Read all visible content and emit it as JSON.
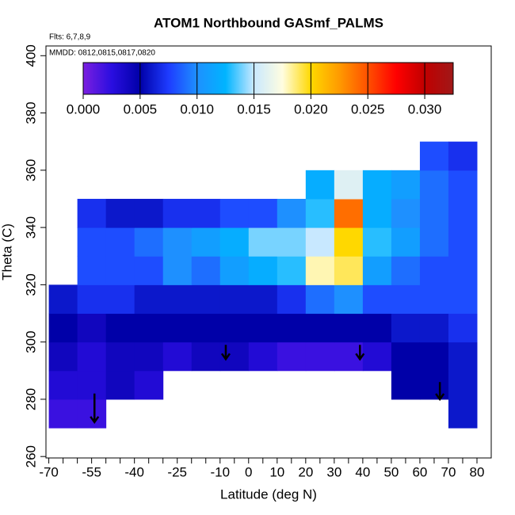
{
  "chart_data": {
    "type": "heatmap",
    "title": "ATOM1 Northbound GASmf_PALMS",
    "annotations": [
      "Flts: 6,7,8,9",
      "MMDD: 0812,0815,0817,0820"
    ],
    "x_label": "Latitude (deg N)",
    "y_label": "Theta (C)",
    "xlim": [
      -71,
      85
    ],
    "ylim": [
      259.5,
      403.4
    ],
    "xticks": [
      -70,
      -55,
      -40,
      -25,
      -10,
      0,
      10,
      20,
      30,
      40,
      50,
      60,
      70,
      80
    ],
    "xminor_ticks": [
      -65,
      -60,
      -50,
      -45,
      -35,
      -30,
      -20,
      -15,
      -5,
      5,
      15,
      25,
      35,
      45,
      55,
      65,
      75
    ],
    "yticks": [
      260,
      280,
      300,
      320,
      340,
      360,
      380,
      400
    ],
    "x_bins": [
      -70,
      -60,
      -50,
      -40,
      -30,
      -20,
      -10,
      0,
      10,
      20,
      30,
      40,
      50,
      60,
      70,
      80
    ],
    "y_bins": [
      270,
      280,
      290,
      300,
      310,
      320,
      330,
      340,
      350,
      360,
      370
    ],
    "values": [
      [
        0.002,
        0.002,
        null,
        null,
        null,
        null,
        null,
        null,
        null,
        null,
        null,
        null,
        null,
        null,
        0.006
      ],
      [
        0.003,
        0.003,
        0.004,
        0.003,
        null,
        null,
        null,
        null,
        null,
        null,
        null,
        null,
        0.005,
        0.005,
        0.006
      ],
      [
        0.004,
        0.003,
        0.004,
        0.004,
        0.003,
        0.004,
        0.004,
        0.003,
        0.002,
        0.002,
        0.002,
        0.003,
        0.005,
        0.005,
        0.006
      ],
      [
        0.005,
        0.004,
        0.005,
        0.005,
        0.005,
        0.005,
        0.005,
        0.005,
        0.005,
        0.005,
        0.005,
        0.005,
        0.006,
        0.006,
        0.007
      ],
      [
        0.006,
        0.007,
        0.007,
        0.006,
        0.006,
        0.006,
        0.006,
        0.006,
        0.007,
        0.009,
        0.01,
        0.008,
        0.008,
        0.008,
        0.008
      ],
      [
        null,
        0.008,
        0.008,
        0.008,
        0.01,
        0.009,
        0.011,
        0.012,
        0.013,
        0.018,
        0.019,
        0.011,
        0.009,
        0.008,
        0.008
      ],
      [
        null,
        0.008,
        0.008,
        0.009,
        0.01,
        0.011,
        0.012,
        0.014,
        0.014,
        0.015,
        0.02,
        0.013,
        0.011,
        0.009,
        0.008
      ],
      [
        null,
        0.007,
        0.006,
        0.006,
        0.007,
        0.007,
        0.008,
        0.008,
        0.01,
        0.013,
        0.024,
        0.012,
        0.01,
        0.009,
        0.008
      ],
      [
        null,
        null,
        null,
        null,
        null,
        null,
        null,
        null,
        null,
        0.012,
        0.016,
        0.012,
        0.011,
        0.009,
        0.008
      ],
      [
        null,
        null,
        null,
        null,
        null,
        null,
        null,
        null,
        null,
        null,
        null,
        null,
        null,
        0.008,
        0.007
      ]
    ],
    "colorbar": {
      "lim": [
        0,
        0.0325
      ],
      "ticks": [
        {
          "value": 0,
          "label": "0.000"
        },
        {
          "value": 0.005,
          "label": "0.005"
        },
        {
          "value": 0.01,
          "label": "0.010"
        },
        {
          "value": 0.015,
          "label": "0.015"
        },
        {
          "value": 0.02,
          "label": "0.020"
        },
        {
          "value": 0.025,
          "label": "0.025"
        },
        {
          "value": 0.03,
          "label": "0.030"
        }
      ],
      "colors": [
        "#7b1fe0",
        "#2a0ee0",
        "#0000a8",
        "#1e3cff",
        "#1e90ff",
        "#00b4ff",
        "#c8e8ff",
        "#fffde0",
        "#ffd800",
        "#ff9a00",
        "#ff5000",
        "#ff0000",
        "#c00000",
        "#a01818"
      ]
    },
    "arrows": [
      {
        "x": -54,
        "y_from": 282,
        "y_to": 272
      },
      {
        "x": -8,
        "y_from": 299,
        "y_to": 294
      },
      {
        "x": 39,
        "y_from": 299,
        "y_to": 294
      },
      {
        "x": 67,
        "y_from": 286,
        "y_to": 280
      }
    ]
  }
}
